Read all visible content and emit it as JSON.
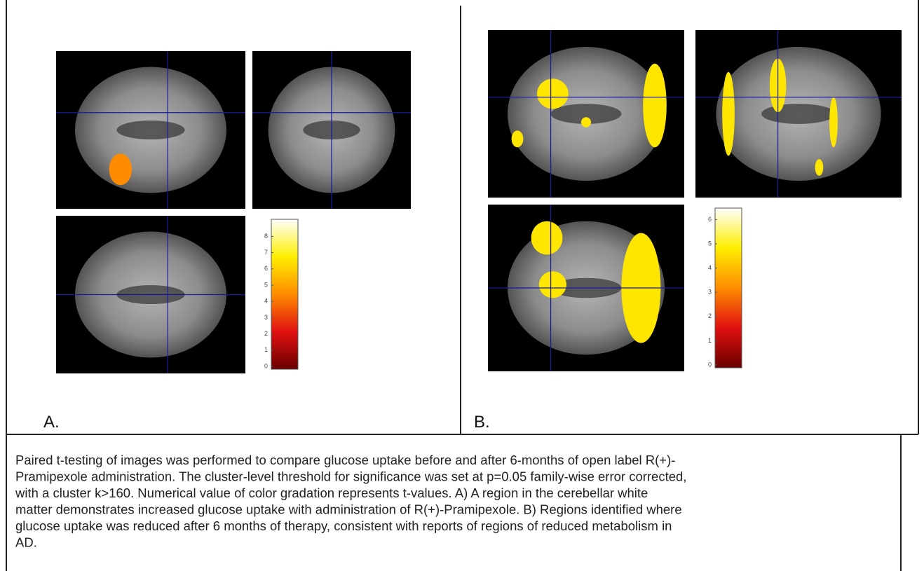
{
  "panels": [
    {
      "label": "A.",
      "colorbar": {
        "ticks": [
          0,
          1,
          2,
          3,
          4,
          5,
          6,
          7,
          8
        ]
      }
    },
    {
      "label": "B.",
      "colorbar": {
        "ticks": [
          0,
          1,
          2,
          3,
          4,
          5,
          6
        ]
      }
    }
  ],
  "caption": {
    "lines": [
      "Paired t-testing of images was performed to compare glucose uptake before and after 6-months of open label R(+)-",
      "Pramipexole administration. The cluster-level threshold for significance was set at p=0.05 family-wise error corrected,",
      "with a cluster k>160. Numerical value of color gradation represents t-values.  A) A region in the cerebellar white",
      "matter demonstrates increased glucose uptake with administration of R(+)-Pramipexole.  B)  Regions identified where",
      "glucose uptake was reduced after 6 months of therapy, consistent with reports of regions of reduced metabolism in",
      "AD."
    ]
  }
}
